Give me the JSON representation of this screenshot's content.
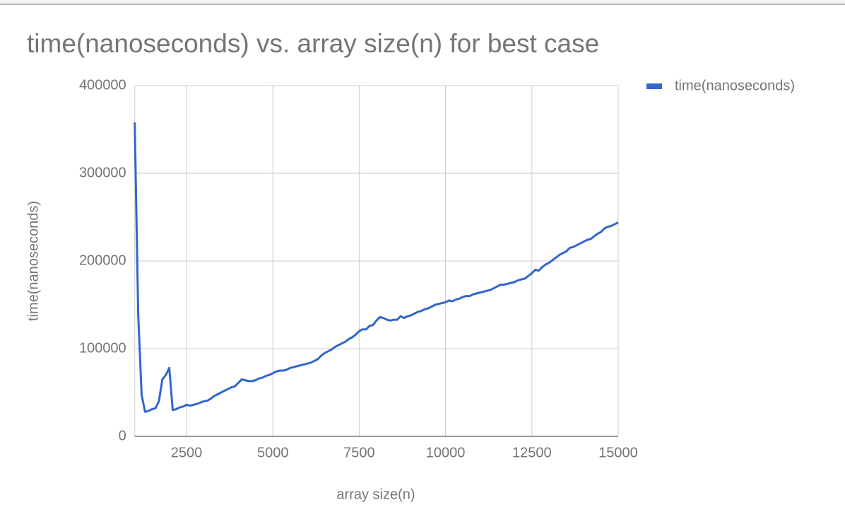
{
  "chart_data": {
    "type": "line",
    "title": "time(nanoseconds) vs. array size(n) for best case",
    "x_label": "array size(n)",
    "y_label": "time(nanoseconds)",
    "x": [
      1000,
      1100,
      1200,
      1300,
      1400,
      1500,
      1600,
      1700,
      1800,
      1900,
      2000,
      2100,
      2200,
      2300,
      2400,
      2500,
      2600,
      2700,
      2800,
      2900,
      3000,
      3100,
      3200,
      3300,
      3400,
      3500,
      3600,
      3700,
      3800,
      3900,
      4000,
      4100,
      4200,
      4300,
      4400,
      4500,
      4600,
      4700,
      4800,
      4900,
      5000,
      5100,
      5200,
      5300,
      5400,
      5500,
      5600,
      5700,
      5800,
      5900,
      6000,
      6100,
      6200,
      6300,
      6400,
      6500,
      6600,
      6700,
      6800,
      6900,
      7000,
      7100,
      7200,
      7300,
      7400,
      7500,
      7600,
      7700,
      7800,
      7900,
      8000,
      8100,
      8200,
      8300,
      8400,
      8500,
      8600,
      8700,
      8800,
      8900,
      9000,
      9100,
      9200,
      9300,
      9400,
      9500,
      9600,
      9700,
      9800,
      9900,
      10000,
      10100,
      10200,
      10300,
      10400,
      10500,
      10600,
      10700,
      10800,
      10900,
      11000,
      11100,
      11200,
      11300,
      11400,
      11500,
      11600,
      11700,
      11800,
      11900,
      12000,
      12100,
      12200,
      12300,
      12400,
      12500,
      12600,
      12700,
      12800,
      12900,
      13000,
      13100,
      13200,
      13300,
      13400,
      13500,
      13600,
      13700,
      13800,
      13900,
      14000,
      14100,
      14200,
      14300,
      14400,
      14500,
      14600,
      14700,
      14800,
      14900,
      15000
    ],
    "series": [
      {
        "name": "time(nanoseconds)",
        "color": "#3366cc",
        "values": [
          358000,
          140000,
          47000,
          28000,
          29000,
          31000,
          32000,
          40000,
          65000,
          70000,
          78000,
          30000,
          31000,
          33000,
          34000,
          36000,
          35000,
          36000,
          37000,
          38500,
          40000,
          40500,
          43000,
          46000,
          48000,
          50000,
          52000,
          54000,
          56000,
          57000,
          61000,
          65000,
          64000,
          63000,
          63000,
          64000,
          66000,
          67000,
          69000,
          70000,
          72000,
          74000,
          75000,
          75000,
          76000,
          78000,
          79000,
          80000,
          81000,
          82000,
          83000,
          84000,
          86000,
          88000,
          92000,
          95000,
          97000,
          99000,
          102000,
          104000,
          106000,
          108000,
          111000,
          113000,
          116000,
          120000,
          122000,
          122000,
          126000,
          127000,
          132000,
          136000,
          135000,
          133000,
          132000,
          133000,
          133000,
          137000,
          135000,
          137000,
          138000,
          140000,
          142000,
          143000,
          145000,
          146000,
          148000,
          150000,
          151000,
          152000,
          153000,
          155000,
          154000,
          156000,
          157000,
          159000,
          160000,
          160000,
          162000,
          163000,
          164000,
          165000,
          166000,
          167000,
          169000,
          171000,
          173000,
          173000,
          174000,
          175000,
          176000,
          178000,
          179000,
          180000,
          183000,
          186000,
          190000,
          189000,
          193000,
          196000,
          198000,
          201000,
          204000,
          207000,
          209000,
          211000,
          215000,
          216000,
          218000,
          220000,
          222000,
          224000,
          225000,
          228000,
          231000,
          233000,
          237000,
          239000,
          240000,
          242000,
          244000
        ]
      }
    ],
    "xlim": [
      1000,
      15000
    ],
    "xticks": [
      2500,
      5000,
      7500,
      10000,
      12500,
      15000
    ],
    "ylim": [
      0,
      400000
    ],
    "yticks": [
      0,
      100000,
      200000,
      300000,
      400000
    ],
    "grid": true,
    "legend": "right"
  }
}
